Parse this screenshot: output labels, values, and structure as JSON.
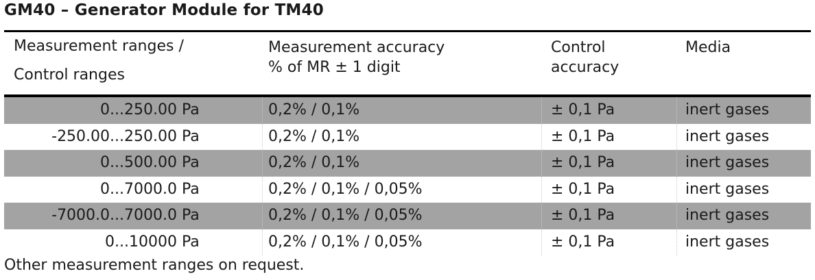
{
  "title": "GM40 – Generator Module for TM40",
  "header": {
    "range_line1": "Measurement ranges /",
    "range_line2": "Control ranges",
    "accuracy_line1": "Measurement accuracy",
    "accuracy_line2": "% of MR ± 1 digit",
    "control_line1": "Control",
    "control_line2": "accuracy",
    "media": "Media"
  },
  "rows": [
    {
      "range": "0...250.00",
      "unit": "Pa",
      "accuracy": "0,2% / 0,1%",
      "control": "± 0,1 Pa",
      "media": "inert gases",
      "shaded": true
    },
    {
      "range": "-250.00...250.00",
      "unit": "Pa",
      "accuracy": "0,2% / 0,1%",
      "control": "± 0,1 Pa",
      "media": "inert gases",
      "shaded": false
    },
    {
      "range": "0...500.00",
      "unit": "Pa",
      "accuracy": "0,2% / 0,1%",
      "control": "± 0,1 Pa",
      "media": "inert gases",
      "shaded": true
    },
    {
      "range": "0...7000.0",
      "unit": "Pa",
      "accuracy": "0,2% / 0,1% / 0,05%",
      "control": "± 0,1 Pa",
      "media": "inert gases",
      "shaded": false
    },
    {
      "range": "-7000.0...7000.0",
      "unit": "Pa",
      "accuracy": "0,2% / 0,1% / 0,05%",
      "control": "± 0,1 Pa",
      "media": "inert gases",
      "shaded": true
    },
    {
      "range": "0...10000",
      "unit": "Pa",
      "accuracy": "0,2% / 0,1% / 0,05%",
      "control": "± 0,1 Pa",
      "media": "inert gases",
      "shaded": false
    }
  ],
  "footer": "Other measurement ranges on request."
}
